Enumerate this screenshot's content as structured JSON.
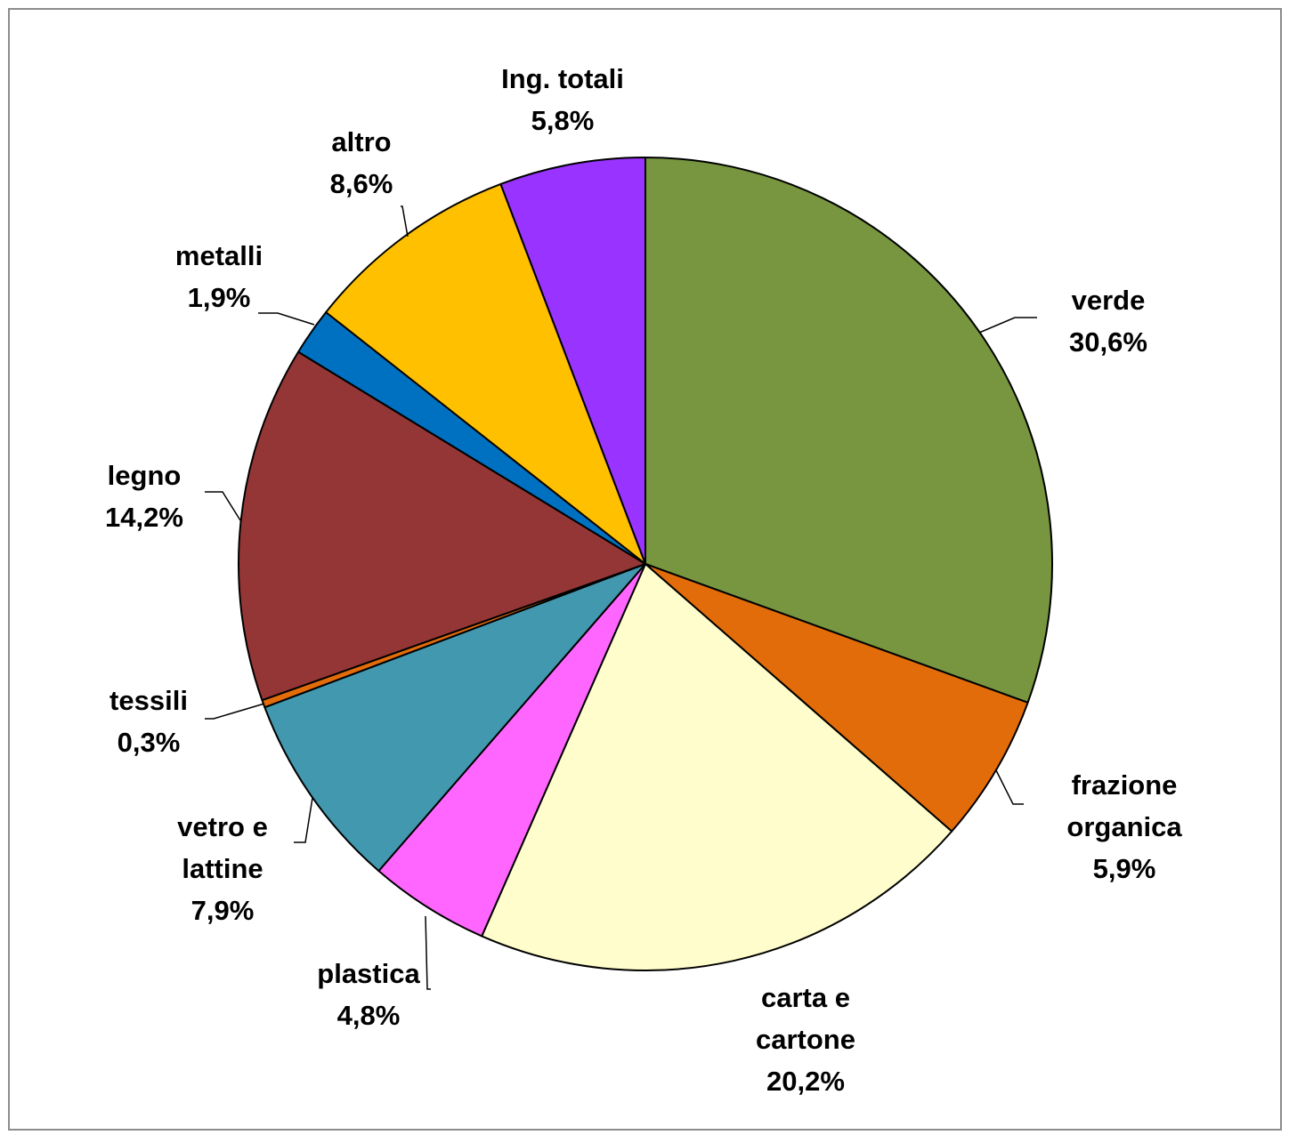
{
  "chart_data": {
    "type": "pie",
    "title": "",
    "slices": [
      {
        "label": [
          "verde"
        ],
        "value_text": "30,6%",
        "value": 30.6,
        "color": "#77963F"
      },
      {
        "label": [
          "frazione",
          "organica"
        ],
        "value_text": "5,9%",
        "value": 5.9,
        "color": "#E36C0A"
      },
      {
        "label": [
          "carta e",
          "cartone"
        ],
        "value_text": "20,2%",
        "value": 20.2,
        "color": "#FFFDCC"
      },
      {
        "label": [
          "plastica"
        ],
        "value_text": "4,8%",
        "value": 4.8,
        "color": "#FF66FF"
      },
      {
        "label": [
          "vetro e",
          "lattine"
        ],
        "value_text": "7,9%",
        "value": 7.9,
        "color": "#4298AF"
      },
      {
        "label": [
          "tessili"
        ],
        "value_text": "0,3%",
        "value": 0.3,
        "color": "#E36C0A"
      },
      {
        "label": [
          "legno"
        ],
        "value_text": "14,2%",
        "value": 14.2,
        "color": "#943636"
      },
      {
        "label": [
          "metalli"
        ],
        "value_text": "1,9%",
        "value": 1.9,
        "color": "#0070C0"
      },
      {
        "label": [
          "altro"
        ],
        "value_text": "8,6%",
        "value": 8.6,
        "color": "#FFC000"
      },
      {
        "label": [
          "Ing. totali"
        ],
        "value_text": "5,8%",
        "value": 5.8,
        "color": "#9933FF"
      }
    ],
    "start_angle": "12 o'clock",
    "direction": "clockwise",
    "legend": "none",
    "data_labels": "outside with leader lines"
  }
}
